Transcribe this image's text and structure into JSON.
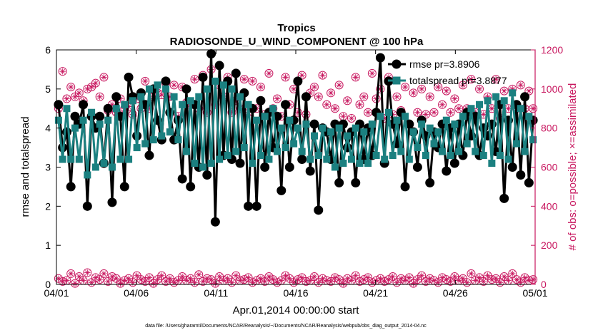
{
  "chart_data": {
    "type": "line",
    "title": "Tropics",
    "subtitle": "RADIOSONDE_U_WIND_COMPONENT @ 100 hPa",
    "xlabel": "Apr.01,2014 00:00:00 start",
    "ylabel": "rmse and totalspread",
    "y2label": "# of obs: o=possible; ×=assimilated",
    "xlim": [
      0,
      30
    ],
    "ylim": [
      0,
      6
    ],
    "y2lim": [
      0,
      1200
    ],
    "xticks": [
      0,
      5,
      10,
      15,
      20,
      25,
      30
    ],
    "xtick_labels": [
      "04/01",
      "04/06",
      "04/11",
      "04/16",
      "04/21",
      "04/26",
      "05/01"
    ],
    "yticks": [
      0,
      1,
      2,
      3,
      4,
      5,
      6
    ],
    "ytick_labels": [
      "0",
      "1",
      "2",
      "3",
      "4",
      "5",
      "6"
    ],
    "y2ticks": [
      0,
      200,
      400,
      600,
      800,
      1000,
      1200
    ],
    "y2tick_labels": [
      "0",
      "200",
      "400",
      "600",
      "800",
      "1000",
      "1200"
    ],
    "legend_location": "top-right",
    "colors": {
      "rmse": "#000000",
      "totalspread": "#1b8080",
      "obs": "#c8175f",
      "axis2": "#c8175f"
    },
    "footnote": "data file: /Users/gharamti/Documents/NCAR/Reanalysis/~/Documents/NCAR/Reanalysis/webpub/obs_diag_output_2014-04.nc",
    "series": [
      {
        "name": "rmse",
        "legend": "rmse  pr=3.8906",
        "values": [
          4.6,
          3.5,
          3.9,
          2.5,
          4.3,
          4.1,
          4.6,
          2.0,
          4.3,
          4.0,
          4.3,
          3.1,
          4.5,
          2.1,
          4.8,
          4.3,
          2.5,
          5.3,
          4.8,
          3.8,
          4.9,
          4.6,
          3.3,
          5.0,
          4.2,
          3.7,
          5.2,
          4.4,
          3.7,
          4.2,
          2.7,
          5.0,
          2.5,
          4.6,
          3.0,
          5.3,
          2.8,
          5.9,
          1.6,
          5.6,
          3.3,
          5.2,
          3.2,
          5.4,
          3.1,
          4.9,
          2.0,
          4.5,
          2.0,
          4.7,
          3.0,
          4.4,
          3.5,
          4.3,
          2.4,
          4.6,
          3.0,
          4.2,
          5.2,
          3.2,
          4.8,
          2.9,
          4.1,
          1.9,
          4.0,
          3.9,
          3.2,
          4.1,
          2.6,
          4.1,
          3.5,
          3.9,
          2.6,
          4.1,
          3.2,
          4.0,
          3.3,
          4.4,
          5.8,
          3.1,
          5.2,
          4.1,
          3.6,
          4.4,
          2.5,
          4.1,
          3.9,
          3.0,
          4.2,
          3.8,
          2.6,
          3.9,
          3.5,
          4.1,
          2.9,
          4.0,
          3.1,
          4.1,
          3.3,
          4.4,
          3.8,
          4.3,
          3.3,
          4.0,
          3.8,
          4.1,
          3.4,
          4.6,
          2.2,
          4.2,
          3.0,
          4.6,
          2.8,
          4.8,
          2.6,
          4.2
        ]
      },
      {
        "name": "totalspread",
        "legend": "totalspread  pr=3.8877",
        "values": [
          4.2,
          3.2,
          4.5,
          3.2,
          4.0,
          3.2,
          4.2,
          2.8,
          4.4,
          3.0,
          4.1,
          3.1,
          4.2,
          3.0,
          4.5,
          3.2,
          4.6,
          3.2,
          4.7,
          3.5,
          4.8,
          3.6,
          5.0,
          3.7,
          5.1,
          3.8,
          5.0,
          3.9,
          4.8,
          3.7,
          4.6,
          3.4,
          4.7,
          3.1,
          4.8,
          3.0,
          5.0,
          3.1,
          5.2,
          3.2,
          5.1,
          3.3,
          5.0,
          3.4,
          4.8,
          3.5,
          4.6,
          3.1,
          4.2,
          3.3,
          4.3,
          3.2,
          4.5,
          3.4,
          4.0,
          3.5,
          4.2,
          3.6,
          4.0,
          3.4,
          4.1,
          3.2,
          3.8,
          3.3,
          4.0,
          3.2,
          3.9,
          3.0,
          4.0,
          3.1,
          3.8,
          3.2,
          4.0,
          3.1,
          3.9,
          3.1,
          4.1,
          3.3,
          4.3,
          3.2,
          4.4,
          3.3,
          4.2,
          3.4,
          4.3,
          3.2,
          3.9,
          3.5,
          4.1,
          3.3,
          4.0,
          3.6,
          3.9,
          3.4,
          4.2,
          3.3,
          4.1,
          3.4,
          4.3,
          3.6,
          4.5,
          3.4,
          4.6,
          3.3,
          4.7,
          3.1,
          4.8,
          3.3,
          4.7,
          3.2,
          4.9,
          3.6,
          4.5,
          3.4,
          4.3,
          3.7
        ]
      },
      {
        "name": "possible (upper)",
        "values": [
          900,
          1090,
          950,
          1010,
          960,
          980,
          940,
          1000,
          1010,
          1030,
          960,
          1060,
          890,
          920,
          880,
          950,
          900,
          910,
          870,
          950,
          900,
          1040,
          900,
          960,
          980,
          970,
          1030,
          960,
          1020,
          860,
          1010,
          930,
          920,
          1050,
          900,
          1070,
          880,
          1100,
          920,
          1020,
          960,
          1060,
          880,
          940,
          900,
          1050,
          880,
          1040,
          900,
          1010,
          870,
          1080,
          900,
          950,
          860,
          1060,
          920,
          1000,
          880,
          1070,
          870,
          980,
          1010,
          960,
          1070,
          920,
          980,
          900,
          1020,
          860,
          940,
          850,
          1060,
          920,
          960,
          880,
          1080,
          950,
          1000,
          850,
          1060,
          870,
          960,
          890,
          1010,
          820,
          980,
          880,
          1000,
          870,
          960,
          880,
          1010,
          920,
          990,
          880,
          950,
          900,
          1020,
          900,
          1050,
          880,
          1000,
          870,
          960,
          900,
          1050,
          850,
          990,
          900,
          1000,
          900,
          1020,
          900,
          990,
          900
        ]
      },
      {
        "name": "assimilated (lower)",
        "values": [
          30,
          15,
          20,
          55,
          5,
          40,
          20,
          60,
          10,
          35,
          25,
          55,
          15,
          40,
          30,
          5,
          20,
          30,
          10,
          45,
          25,
          15,
          35,
          5,
          25,
          45,
          15,
          30,
          10,
          20,
          40,
          20,
          30,
          10,
          50,
          15,
          30,
          25,
          5,
          40,
          20,
          30,
          10,
          45,
          20,
          25,
          35,
          10,
          20,
          30,
          15,
          40,
          25,
          10,
          20,
          45,
          30,
          10,
          25,
          35,
          15,
          20,
          40,
          10,
          30,
          20,
          15,
          35,
          25,
          5,
          30,
          20,
          45,
          15,
          25,
          35,
          10,
          20,
          30,
          15,
          25,
          40,
          10,
          30,
          20,
          35,
          5,
          25,
          45,
          15,
          30,
          20,
          10,
          35,
          25,
          15,
          40,
          20,
          30,
          10,
          55,
          20,
          35,
          15,
          45,
          25,
          30,
          10,
          40,
          20,
          55,
          25,
          10,
          35,
          20,
          25
        ]
      }
    ]
  }
}
